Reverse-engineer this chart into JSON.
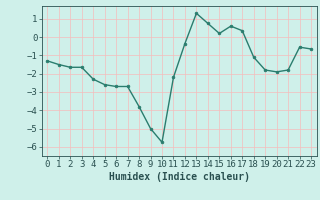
{
  "x": [
    0,
    1,
    2,
    3,
    4,
    5,
    6,
    7,
    8,
    9,
    10,
    11,
    12,
    13,
    14,
    15,
    16,
    17,
    18,
    19,
    20,
    21,
    22,
    23
  ],
  "y": [
    -1.3,
    -1.5,
    -1.65,
    -1.65,
    -2.3,
    -2.6,
    -2.7,
    -2.7,
    -3.8,
    -5.0,
    -5.75,
    -2.2,
    -0.35,
    1.3,
    0.75,
    0.2,
    0.6,
    0.35,
    -1.1,
    -1.8,
    -1.9,
    -1.8,
    -0.55,
    -0.65
  ],
  "line_color": "#2a7d6e",
  "marker": "o",
  "markersize": 2.0,
  "linewidth": 1.0,
  "xlabel": "Humidex (Indice chaleur)",
  "xlim": [
    -0.5,
    23.5
  ],
  "ylim": [
    -6.5,
    1.7
  ],
  "yticks": [
    1,
    0,
    -1,
    -2,
    -3,
    -4,
    -5,
    -6
  ],
  "xticks": [
    0,
    1,
    2,
    3,
    4,
    5,
    6,
    7,
    8,
    9,
    10,
    11,
    12,
    13,
    14,
    15,
    16,
    17,
    18,
    19,
    20,
    21,
    22,
    23
  ],
  "background_color": "#cff0ea",
  "grid_color": "#f5bcbc",
  "axis_color": "#2a5050",
  "xlabel_fontsize": 7,
  "tick_fontsize": 6.5
}
